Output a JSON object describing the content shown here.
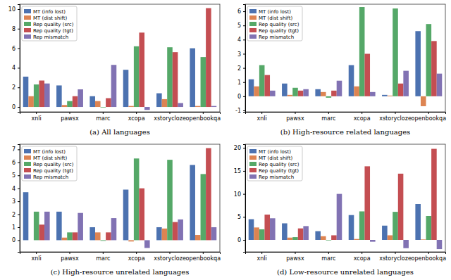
{
  "chart_data": [
    {
      "type": "bar",
      "title": "(a) All languages",
      "legend": "upper left",
      "categories": [
        "xnli",
        "pawsx",
        "marc",
        "xcopa",
        "xstorycloze",
        "openbookqa"
      ],
      "ylim": [
        -0.5,
        10.5
      ],
      "yticks": [
        0,
        2,
        4,
        6,
        8,
        10
      ],
      "series": [
        {
          "name": "MT (info lost)",
          "color": "#4c72b0",
          "values": [
            3.1,
            2.2,
            1.1,
            3.8,
            1.4,
            6.0
          ]
        },
        {
          "name": "MT (dist shift)",
          "color": "#dd8452",
          "values": [
            1.1,
            0.2,
            0.6,
            0.1,
            0.8,
            0.1
          ]
        },
        {
          "name": "Rep quality (src)",
          "color": "#55a868",
          "values": [
            2.3,
            0.6,
            -0.05,
            6.2,
            6.1,
            5.1
          ]
        },
        {
          "name": "Rep quality (tgt)",
          "color": "#c44e52",
          "values": [
            2.7,
            1.1,
            0.9,
            7.6,
            5.6,
            10.1
          ]
        },
        {
          "name": "Rep mismatch",
          "color": "#8172b3",
          "values": [
            2.4,
            1.8,
            4.3,
            -0.3,
            0.4,
            0.1
          ]
        }
      ]
    },
    {
      "type": "bar",
      "title": "(b) High-resource related languages",
      "legend": "upper left",
      "categories": [
        "xnli",
        "pawsx",
        "marc",
        "xcopa",
        "xstorycloze",
        "openbookqa"
      ],
      "ylim": [
        -1.1,
        6.5
      ],
      "yticks": [
        -1,
        0,
        1,
        2,
        3,
        4,
        5,
        6
      ],
      "series": [
        {
          "name": "MT (info lost)",
          "color": "#4c72b0",
          "values": [
            1.2,
            0.9,
            0.5,
            2.2,
            0.1,
            4.6
          ]
        },
        {
          "name": "MT (dist shift)",
          "color": "#dd8452",
          "values": [
            0.7,
            0.1,
            0.3,
            0.7,
            0.05,
            -0.7
          ]
        },
        {
          "name": "Rep quality (src)",
          "color": "#55a868",
          "values": [
            2.2,
            0.6,
            -0.1,
            6.3,
            6.2,
            5.1
          ]
        },
        {
          "name": "Rep quality (tgt)",
          "color": "#c44e52",
          "values": [
            1.5,
            0.4,
            0.4,
            3.0,
            0.9,
            3.9
          ]
        },
        {
          "name": "Rep mismatch",
          "color": "#8172b3",
          "values": [
            0.4,
            0.5,
            1.1,
            0.3,
            1.8,
            1.6
          ]
        }
      ]
    },
    {
      "type": "bar",
      "title": "(c) High-resource unrelated languages",
      "legend": "upper left",
      "categories": [
        "xnli",
        "pawsx",
        "marc",
        "xcopa",
        "xstorycloze",
        "openbookqa"
      ],
      "ylim": [
        -0.9,
        7.4
      ],
      "yticks": [
        0,
        1,
        2,
        3,
        4,
        5,
        6,
        7
      ],
      "series": [
        {
          "name": "MT (info lost)",
          "color": "#4c72b0",
          "values": [
            3.7,
            2.2,
            1.0,
            3.9,
            1.0,
            5.8
          ]
        },
        {
          "name": "MT (dist shift)",
          "color": "#dd8452",
          "values": [
            0.0,
            0.2,
            0.6,
            -0.1,
            0.9,
            0.4
          ]
        },
        {
          "name": "Rep quality (src)",
          "color": "#55a868",
          "values": [
            2.2,
            0.6,
            -0.05,
            6.3,
            6.2,
            5.1
          ]
        },
        {
          "name": "Rep quality (tgt)",
          "color": "#c44e52",
          "values": [
            1.2,
            0.6,
            0.6,
            4.0,
            1.4,
            7.1
          ]
        },
        {
          "name": "Rep mismatch",
          "color": "#8172b3",
          "values": [
            2.2,
            2.1,
            1.7,
            -0.6,
            1.6,
            1.0
          ]
        }
      ]
    },
    {
      "type": "bar",
      "title": "(d) Low-resource unrelated languages",
      "legend": "upper left",
      "categories": [
        "xnli",
        "pawsx",
        "marc",
        "xcopa",
        "xstorycloze",
        "openbookqa"
      ],
      "ylim": [
        -2.6,
        20.8
      ],
      "yticks": [
        0,
        5,
        10,
        15,
        20
      ],
      "series": [
        {
          "name": "MT (info lost)",
          "color": "#4c72b0",
          "values": [
            4.5,
            3.6,
            1.9,
            5.4,
            3.1,
            7.8
          ]
        },
        {
          "name": "MT (dist shift)",
          "color": "#dd8452",
          "values": [
            2.7,
            0.5,
            0.8,
            0.2,
            1.0,
            0.1
          ]
        },
        {
          "name": "Rep quality (src)",
          "color": "#55a868",
          "values": [
            2.3,
            0.6,
            -0.1,
            6.2,
            6.1,
            5.2
          ]
        },
        {
          "name": "Rep quality (tgt)",
          "color": "#c44e52",
          "values": [
            5.5,
            2.5,
            1.0,
            16.0,
            14.4,
            19.8
          ]
        },
        {
          "name": "Rep mismatch",
          "color": "#8172b3",
          "values": [
            4.7,
            3.0,
            10.0,
            -0.4,
            -1.8,
            -2.0
          ]
        }
      ]
    }
  ]
}
